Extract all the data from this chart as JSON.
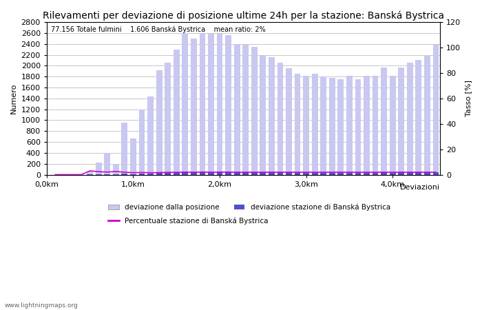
{
  "title": "Rilevamenti per deviazione di posizione ultime 24h per la stazione: Banská Bystrica",
  "subtitle": "77.156 Totale fulmini    1.606 Banská Bystrica    mean ratio: 2%",
  "xlabel": "Deviazioni",
  "ylabel_left": "Numero",
  "ylabel_right": "Tasso [%]",
  "watermark": "www.lightningmaps.org",
  "bar_positions": [
    0.1,
    0.2,
    0.3,
    0.4,
    0.5,
    0.6,
    0.7,
    0.8,
    0.9,
    1.0,
    1.1,
    1.2,
    1.3,
    1.4,
    1.5,
    1.6,
    1.7,
    1.8,
    1.9,
    2.0,
    2.1,
    2.2,
    2.3,
    2.4,
    2.5,
    2.6,
    2.7,
    2.8,
    2.9,
    3.0,
    3.1,
    3.2,
    3.3,
    3.4,
    3.5,
    3.6,
    3.7,
    3.8,
    3.9,
    4.0,
    4.1,
    4.2,
    4.3,
    4.4,
    4.5
  ],
  "bar_heights_total": [
    0,
    0,
    0,
    0,
    60,
    220,
    400,
    200,
    960,
    660,
    1200,
    1440,
    1920,
    2050,
    2300,
    2600,
    2500,
    2600,
    2580,
    2590,
    2560,
    2400,
    2380,
    2350,
    2180,
    2160,
    2060,
    1950,
    1850,
    1820,
    1850,
    1800,
    1780,
    1750,
    1820,
    1750,
    1820,
    1820,
    1960,
    1820,
    1960,
    2050,
    2100,
    2200,
    2380
  ],
  "bar_heights_station": [
    0,
    0,
    0,
    0,
    2,
    5,
    8,
    5,
    18,
    10,
    20,
    22,
    30,
    38,
    42,
    52,
    48,
    52,
    50,
    52,
    50,
    46,
    45,
    45,
    42,
    42,
    40,
    38,
    36,
    35,
    36,
    35,
    34,
    34,
    35,
    34,
    35,
    35,
    38,
    35,
    38,
    40,
    41,
    43,
    46
  ],
  "percentage_line": [
    0,
    0,
    0,
    0,
    3,
    2.3,
    2.0,
    2.5,
    1.9,
    1.5,
    1.7,
    1.5,
    1.6,
    1.8,
    1.8,
    2.0,
    1.9,
    2.0,
    1.9,
    2.0,
    2.0,
    1.9,
    1.9,
    1.9,
    1.9,
    1.9,
    1.9,
    1.9,
    1.9,
    1.9,
    1.9,
    1.9,
    1.9,
    1.9,
    1.9,
    1.9,
    1.9,
    1.9,
    1.9,
    1.9,
    1.9,
    1.9,
    1.9,
    1.9,
    1.9
  ],
  "bar_color_total": "#c8c8f0",
  "bar_color_station": "#5050c8",
  "line_color": "#cc00cc",
  "ylim_left": [
    0,
    2800
  ],
  "ylim_right": [
    0,
    120
  ],
  "xlim": [
    0.0,
    4.55
  ],
  "xtick_positions": [
    0.0,
    1.0,
    2.0,
    3.0,
    4.0
  ],
  "xtick_labels": [
    "0,0km",
    "1,0km",
    "2,0km",
    "3,0km",
    "4,0km"
  ],
  "ytick_left": [
    0,
    200,
    400,
    600,
    800,
    1000,
    1200,
    1400,
    1600,
    1800,
    2000,
    2200,
    2400,
    2600,
    2800
  ],
  "ytick_right": [
    0,
    20,
    40,
    60,
    80,
    100,
    120
  ],
  "background_color": "#ffffff",
  "grid_color": "#b0b0b0",
  "title_fontsize": 10,
  "label_fontsize": 8,
  "tick_fontsize": 8,
  "legend_label_total": "deviazione dalla posizione",
  "legend_label_station": "deviazione stazione di Banská Bystrica",
  "legend_label_line": "Percentuale stazione di Banská Bystrica",
  "bar_width": 0.07
}
